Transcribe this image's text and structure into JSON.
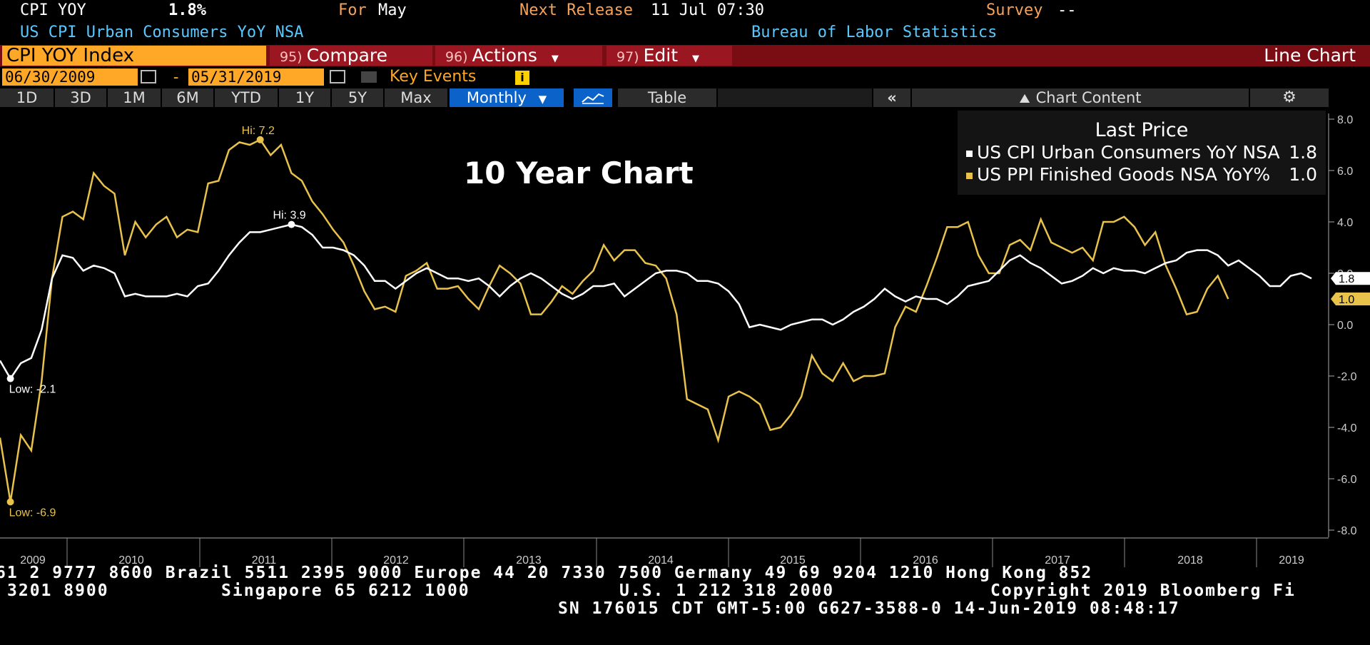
{
  "header": {
    "ticker": "CPI YOY",
    "value": "1.8%",
    "for_label": "For",
    "for_value": "May",
    "release_label": "Next Release",
    "release_value": "11 Jul 07:30",
    "survey_label": "Survey",
    "survey_value": "--",
    "description": "US CPI Urban Consumers YoY NSA",
    "source": "Bureau of Labor Statistics"
  },
  "menu": {
    "security": "CPI YOY Index",
    "compare_num": "95)",
    "compare": "Compare",
    "actions_num": "96)",
    "actions": "Actions",
    "edit_num": "97)",
    "edit": "Edit",
    "chart_type": "Line Chart"
  },
  "range": {
    "start": "06/30/2009",
    "sep": "-",
    "end": "05/31/2019",
    "key_events": "Key Events",
    "info": "i"
  },
  "tabs": [
    "1D",
    "3D",
    "1M",
    "6M",
    "YTD",
    "1Y",
    "5Y",
    "Max"
  ],
  "toolbar": {
    "period": "Monthly",
    "table": "Table",
    "collapse": "«",
    "chart_content": "Chart Content"
  },
  "colors": {
    "cpi": "#ffffff",
    "ppi": "#e8c24a",
    "orange": "#ffa726",
    "selected_tab": "#0b62c8"
  },
  "chart_data": {
    "type": "line",
    "title": "10 Year Chart",
    "legend_title": "Last Price",
    "legend_position": "top-right",
    "ylim": [
      -8,
      8
    ],
    "yticks": [
      "8.0",
      "6.0",
      "4.0",
      "2.0",
      "0.0",
      "-2.0",
      "-4.0",
      "-6.0",
      "-8.0"
    ],
    "x_labels": [
      "2009",
      "2010",
      "2011",
      "2012",
      "2013",
      "2014",
      "2015",
      "2016",
      "2017",
      "2018",
      "2019"
    ],
    "series": [
      {
        "name": "US CPI Urban Consumers YoY NSA",
        "last": "1.8",
        "hi_label": "Hi: 3.9",
        "low_label": "Low: -2.1",
        "values": [
          -1.4,
          -2.1,
          -1.5,
          -1.3,
          -0.2,
          1.8,
          2.7,
          2.6,
          2.1,
          2.3,
          2.2,
          2.0,
          1.1,
          1.2,
          1.1,
          1.1,
          1.1,
          1.2,
          1.1,
          1.5,
          1.6,
          2.1,
          2.7,
          3.2,
          3.6,
          3.6,
          3.7,
          3.8,
          3.9,
          3.8,
          3.5,
          3.0,
          3.0,
          2.9,
          2.7,
          2.3,
          1.7,
          1.7,
          1.4,
          1.7,
          2.0,
          2.2,
          2.0,
          1.8,
          1.8,
          1.7,
          1.8,
          1.5,
          1.1,
          1.5,
          1.8,
          2.0,
          1.8,
          1.5,
          1.2,
          1.0,
          1.2,
          1.5,
          1.5,
          1.6,
          1.1,
          1.4,
          1.7,
          2.0,
          2.1,
          2.1,
          2.0,
          1.7,
          1.7,
          1.6,
          1.3,
          0.8,
          -0.1,
          0.0,
          -0.1,
          -0.2,
          0.0,
          0.1,
          0.2,
          0.2,
          0.0,
          0.2,
          0.5,
          0.7,
          1.0,
          1.4,
          1.1,
          0.9,
          1.1,
          1.0,
          1.0,
          0.8,
          1.1,
          1.5,
          1.6,
          1.7,
          2.1,
          2.5,
          2.7,
          2.4,
          2.2,
          1.9,
          1.6,
          1.7,
          1.9,
          2.2,
          2.0,
          2.2,
          2.1,
          2.1,
          2.0,
          2.2,
          2.4,
          2.5,
          2.8,
          2.9,
          2.9,
          2.7,
          2.3,
          2.5,
          2.2,
          1.9,
          1.5,
          1.5,
          1.9,
          2.0,
          1.8
        ]
      },
      {
        "name": "US PPI Finished Goods NSA YoY%",
        "last": "1.0",
        "hi_label": "Hi: 7.2",
        "low_label": "Low: -6.9",
        "values": [
          -4.4,
          -6.9,
          -4.3,
          -4.9,
          -2.2,
          1.8,
          4.2,
          4.4,
          4.1,
          5.9,
          5.4,
          5.1,
          2.7,
          4.0,
          3.4,
          3.9,
          4.2,
          3.4,
          3.7,
          3.6,
          5.5,
          5.6,
          6.8,
          7.1,
          7.0,
          7.2,
          6.6,
          7.0,
          5.9,
          5.6,
          4.8,
          4.3,
          3.7,
          3.2,
          2.3,
          1.3,
          0.6,
          0.7,
          0.5,
          1.9,
          2.1,
          2.4,
          1.4,
          1.4,
          1.5,
          1.0,
          0.6,
          1.5,
          2.3,
          2.0,
          1.6,
          0.4,
          0.4,
          0.9,
          1.5,
          1.2,
          1.7,
          2.1,
          3.1,
          2.5,
          2.9,
          2.9,
          2.4,
          2.3,
          1.8,
          0.4,
          -2.9,
          -3.1,
          -3.3,
          -4.5,
          -2.8,
          -2.6,
          -2.8,
          -3.1,
          -4.1,
          -4.0,
          -3.5,
          -2.8,
          -1.2,
          -1.9,
          -2.2,
          -1.5,
          -2.2,
          -2.0,
          -2.0,
          -1.9,
          -0.1,
          0.7,
          0.5,
          1.5,
          2.6,
          3.8,
          3.8,
          4.0,
          2.7,
          2.0,
          2.0,
          3.1,
          3.3,
          2.9,
          4.1,
          3.2,
          3.0,
          2.8,
          3.0,
          2.5,
          4.0,
          4.0,
          4.2,
          3.8,
          3.1,
          3.6,
          2.3,
          1.4,
          0.4,
          0.5,
          1.4,
          1.9,
          1.0
        ]
      }
    ]
  },
  "footer": {
    "line1": "61 2 9777 8600 Brazil 5511 2395 9000 Europe 44 20 7330 7500 Germany 49 69 9204 1210 Hong Kong 852",
    "line2a": "3201 8900",
    "line2b": "Singapore 65 6212 1000",
    "line2c": "U.S. 1 212 318 2000",
    "line2d": "Copyright 2019 Bloomberg Fi",
    "line3": "SN 176015 CDT  GMT-5:00 G627-3588-0 14-Jun-2019 08:48:17"
  }
}
